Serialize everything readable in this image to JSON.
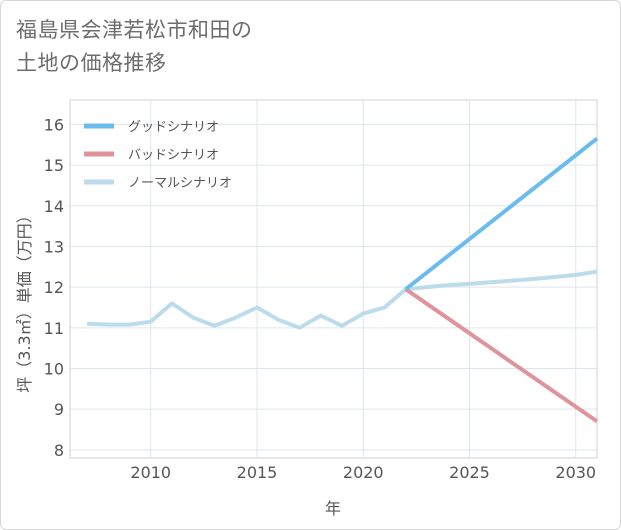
{
  "title": {
    "line1": "福島県会津若松市和田の",
    "line2": "土地の価格推移"
  },
  "chart_data": {
    "type": "line",
    "xlabel": "年",
    "ylabel": "坪（3.3㎡）単価（万円）",
    "xlim": [
      2006.2,
      2031
    ],
    "ylim": [
      7.8,
      16.6
    ],
    "x_ticks": [
      2010,
      2015,
      2020,
      2025,
      2030
    ],
    "y_ticks": [
      8,
      9,
      10,
      11,
      12,
      13,
      14,
      15,
      16
    ],
    "grid": true,
    "legend_position": "top-left",
    "series": [
      {
        "name": "グッドシナリオ",
        "color": "#6bbcee",
        "x": [
          2022,
          2031
        ],
        "values": [
          11.95,
          15.65
        ]
      },
      {
        "name": "バッドシナリオ",
        "color": "#e0939a",
        "x": [
          2022,
          2031
        ],
        "values": [
          11.95,
          8.7
        ]
      },
      {
        "name": "ノーマルシナリオ",
        "color": "#bcdcec",
        "x": [
          2007,
          2008,
          2009,
          2010,
          2011,
          2012,
          2013,
          2014,
          2015,
          2016,
          2017,
          2018,
          2019,
          2020,
          2021,
          2022,
          2023,
          2024,
          2025,
          2026,
          2027,
          2028,
          2029,
          2030,
          2031
        ],
        "values": [
          11.1,
          11.08,
          11.08,
          11.15,
          11.6,
          11.25,
          11.05,
          11.25,
          11.5,
          11.2,
          11.0,
          11.3,
          11.05,
          11.35,
          11.5,
          11.95,
          12.0,
          12.05,
          12.08,
          12.12,
          12.16,
          12.2,
          12.25,
          12.3,
          12.38
        ]
      }
    ]
  }
}
